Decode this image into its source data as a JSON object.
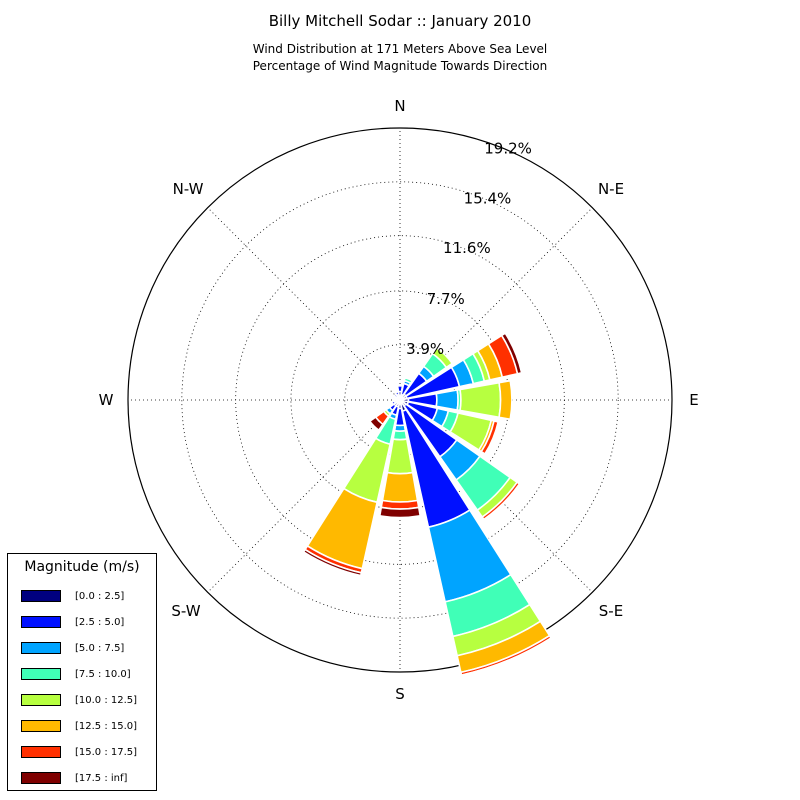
{
  "title": "Billy Mitchell Sodar :: January 2010",
  "subtitle_lines": [
    "Wind Distribution at 171 Meters Above Sea Level",
    "Percentage of Wind Magnitude Towards Direction"
  ],
  "chart_data": {
    "type": "windrose",
    "direction_labels": [
      "N",
      "N-E",
      "E",
      "S-E",
      "S",
      "S-W",
      "W",
      "N-W"
    ],
    "radial_ticks": [
      3.9,
      7.7,
      11.6,
      15.4,
      19.2
    ],
    "radial_tick_labels": [
      "3.9%",
      "7.7%",
      "11.6%",
      "15.4%",
      "19.2%"
    ],
    "rmax": 19.2,
    "bin_count": 16,
    "bin_start_direction_deg": 0,
    "bins": [
      {
        "label": "[0.0 : 2.5]",
        "color": "#00007f"
      },
      {
        "label": "[2.5 : 5.0]",
        "color": "#0010ff"
      },
      {
        "label": "[5.0 : 7.5]",
        "color": "#00a4ff"
      },
      {
        "label": "[7.5 : 10.0]",
        "color": "#40ffb7"
      },
      {
        "label": "[10.0 : 12.5]",
        "color": "#b7ff40"
      },
      {
        "label": "[12.5 : 15.0]",
        "color": "#ffb900"
      },
      {
        "label": "[15.0 : 17.5]",
        "color": "#ff3000"
      },
      {
        "label": "[17.5 : inf]",
        "color": "#7f0000"
      }
    ],
    "percentages": [
      [
        0.6,
        0.4,
        0.0,
        0.0,
        0.0,
        0.0,
        0.0,
        0.0
      ],
      [
        0.4,
        0.8,
        0.2,
        0.2,
        0.0,
        0.0,
        0.0,
        0.0
      ],
      [
        0.5,
        1.8,
        0.6,
        1.1,
        0.5,
        0.0,
        0.0,
        0.0
      ],
      [
        0.5,
        3.8,
        1.0,
        0.8,
        0.4,
        0.9,
        1.1,
        0.3
      ],
      [
        0.6,
        2.0,
        1.5,
        0.2,
        2.8,
        0.8,
        0.0,
        0.0
      ],
      [
        0.6,
        2.1,
        0.8,
        0.7,
        2.4,
        0.2,
        0.3,
        0.0
      ],
      [
        0.5,
        4.4,
        2.0,
        2.6,
        0.6,
        0.0,
        0.2,
        0.0
      ],
      [
        0.8,
        8.4,
        5.4,
        2.5,
        1.4,
        1.2,
        0.2,
        0.1
      ],
      [
        0.6,
        1.2,
        0.4,
        0.6,
        2.4,
        2.0,
        0.5,
        0.6
      ],
      [
        0.5,
        0.6,
        0.3,
        1.8,
        4.2,
        4.8,
        0.3,
        0.2
      ],
      [
        0.5,
        0.4,
        0.3,
        0.0,
        0.2,
        0.0,
        0.7,
        0.5
      ],
      [
        0.4,
        0.2,
        0.1,
        0.0,
        0.0,
        0.0,
        0.0,
        0.0
      ],
      [
        0.3,
        0.1,
        0.0,
        0.0,
        0.0,
        0.0,
        0.0,
        0.0
      ],
      [
        0.3,
        0.1,
        0.0,
        0.0,
        0.0,
        0.0,
        0.0,
        0.0
      ],
      [
        0.3,
        0.2,
        0.0,
        0.0,
        0.0,
        0.0,
        0.0,
        0.0
      ],
      [
        0.4,
        0.2,
        0.0,
        0.0,
        0.0,
        0.0,
        0.0,
        0.0
      ]
    ],
    "legend": {
      "title": "Magnitude (m/s)",
      "placement": "bottom-left"
    },
    "grid": true
  }
}
